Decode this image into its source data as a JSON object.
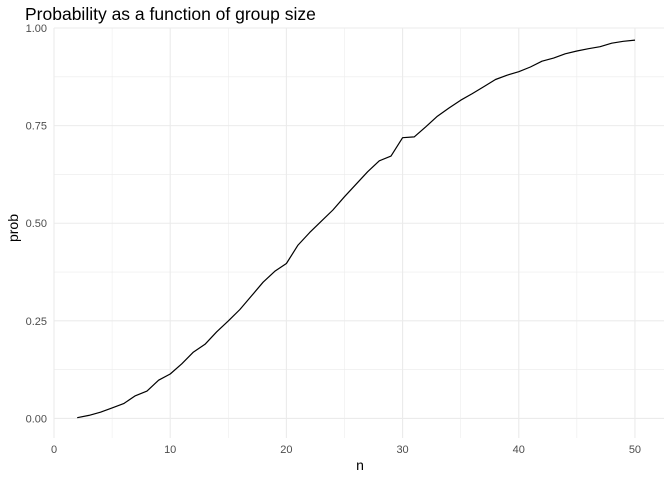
{
  "chart_data": {
    "type": "line",
    "title": "Probability as a function of group size",
    "xlabel": "n",
    "ylabel": "prob",
    "xlim": [
      0,
      52.5
    ],
    "ylim": [
      -0.05,
      1.0
    ],
    "xticks": [
      0,
      10,
      20,
      30,
      40,
      50
    ],
    "xtick_labels": [
      "0",
      "10",
      "20",
      "30",
      "40",
      "50"
    ],
    "xminor": [
      5,
      15,
      25,
      35,
      45
    ],
    "yticks": [
      0.0,
      0.25,
      0.5,
      0.75,
      1.0
    ],
    "ytick_labels": [
      "0.00",
      "0.25",
      "0.50",
      "0.75",
      "1.00"
    ],
    "yminor": [
      0.125,
      0.375,
      0.625,
      0.875
    ],
    "grid": true,
    "line_color": "#000000",
    "x": [
      2,
      3,
      4,
      5,
      6,
      7,
      8,
      9,
      10,
      11,
      12,
      13,
      14,
      15,
      16,
      17,
      18,
      19,
      20,
      21,
      22,
      23,
      24,
      25,
      26,
      27,
      28,
      29,
      30,
      31,
      32,
      33,
      34,
      35,
      36,
      37,
      38,
      39,
      40,
      41,
      42,
      43,
      44,
      45,
      46,
      47,
      48,
      49,
      50
    ],
    "y": [
      0.002,
      0.008,
      0.016,
      0.027,
      0.038,
      0.058,
      0.07,
      0.098,
      0.114,
      0.14,
      0.17,
      0.19,
      0.222,
      0.25,
      0.279,
      0.314,
      0.349,
      0.377,
      0.397,
      0.444,
      0.476,
      0.505,
      0.534,
      0.568,
      0.6,
      0.632,
      0.66,
      0.672,
      0.719,
      0.721,
      0.747,
      0.774,
      0.795,
      0.815,
      0.832,
      0.85,
      0.868,
      0.879,
      0.888,
      0.9,
      0.915,
      0.923,
      0.934,
      0.941,
      0.947,
      0.952,
      0.961,
      0.966,
      0.969
    ]
  }
}
